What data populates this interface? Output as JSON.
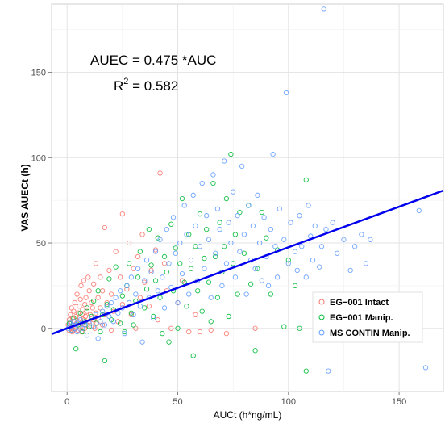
{
  "chart_data": {
    "type": "scatter",
    "title": "",
    "xlabel": "AUCt  (h*ng/mL)",
    "ylabel": "VAS AUECt (h)",
    "xlim": [
      -7,
      170
    ],
    "ylim": [
      -37,
      190
    ],
    "x_ticks": [
      0,
      50,
      100,
      150
    ],
    "y_ticks": [
      0,
      50,
      100,
      150
    ],
    "x_tick_labels": [
      "0",
      "50",
      "100",
      "150"
    ],
    "y_tick_labels": [
      "0",
      "50",
      "100",
      "150"
    ],
    "grid": true,
    "legend_position": "bottom-right",
    "annotation_line1": "AUEC = 0.475 *AUC",
    "annotation_r2_base": "R",
    "annotation_r2_sup": "2",
    "annotation_r2_value": " = 0.582",
    "fit_line": {
      "slope": 0.475,
      "intercept": 0,
      "color": "#0000ee"
    },
    "series": [
      {
        "name": "EG−001 Intact",
        "color": "#f8766d",
        "points": [
          [
            0.5,
            2
          ],
          [
            0.8,
            -1
          ],
          [
            1,
            5
          ],
          [
            1.2,
            1
          ],
          [
            1.5,
            8
          ],
          [
            1.7,
            3
          ],
          [
            2,
            0
          ],
          [
            2,
            12
          ],
          [
            2.3,
            -2
          ],
          [
            2.5,
            6
          ],
          [
            2.8,
            2
          ],
          [
            3,
            10
          ],
          [
            3,
            -1
          ],
          [
            3.2,
            4
          ],
          [
            3.5,
            15
          ],
          [
            3.7,
            1
          ],
          [
            4,
            7
          ],
          [
            4,
            0
          ],
          [
            4.3,
            3
          ],
          [
            4.5,
            20
          ],
          [
            4.8,
            -1
          ],
          [
            5,
            9
          ],
          [
            5,
            4
          ],
          [
            5.3,
            1
          ],
          [
            5.5,
            13
          ],
          [
            5.8,
            6
          ],
          [
            6,
            2
          ],
          [
            6,
            17
          ],
          [
            6.3,
            25
          ],
          [
            6.5,
            -2
          ],
          [
            6.8,
            8
          ],
          [
            7,
            3
          ],
          [
            7,
            11
          ],
          [
            7.3,
            1
          ],
          [
            7.5,
            28
          ],
          [
            7.8,
            5
          ],
          [
            8,
            14
          ],
          [
            8,
            0
          ],
          [
            8.3,
            7
          ],
          [
            8.5,
            18
          ],
          [
            9,
            2
          ],
          [
            9,
            10
          ],
          [
            9.5,
            30
          ],
          [
            10,
            4
          ],
          [
            10,
            22
          ],
          [
            10.5,
            8
          ],
          [
            11,
            1
          ],
          [
            11,
            15
          ],
          [
            11.5,
            12
          ],
          [
            12,
            5
          ],
          [
            12,
            26
          ],
          [
            12.5,
            0
          ],
          [
            13,
            9
          ],
          [
            13,
            38
          ],
          [
            13.5,
            3
          ],
          [
            14,
            18
          ],
          [
            14,
            6
          ],
          [
            15,
            12
          ],
          [
            15,
            30
          ],
          [
            16,
            2
          ],
          [
            16,
            22
          ],
          [
            17,
            59
          ],
          [
            17,
            8
          ],
          [
            18,
            15
          ],
          [
            19,
            34
          ],
          [
            20,
            -1
          ],
          [
            20,
            20
          ],
          [
            21,
            10
          ],
          [
            22,
            45
          ],
          [
            23,
            4
          ],
          [
            24,
            30
          ],
          [
            25,
            67
          ],
          [
            25,
            14
          ],
          [
            27,
            23
          ],
          [
            28,
            50
          ],
          [
            29,
            8
          ],
          [
            30,
            35
          ],
          [
            31,
            0
          ],
          [
            32,
            42
          ],
          [
            33,
            18
          ],
          [
            34,
            55
          ],
          [
            35,
            27
          ],
          [
            37,
            13
          ],
          [
            38,
            34
          ],
          [
            40,
            46
          ],
          [
            41,
            5
          ],
          [
            42,
            91
          ],
          [
            44,
            38
          ],
          [
            45,
            22
          ],
          [
            47,
            0
          ],
          [
            50,
            15
          ],
          [
            52,
            28
          ],
          [
            55,
            -2
          ],
          [
            58,
            8
          ],
          [
            60,
            -2
          ],
          [
            65,
            -1
          ],
          [
            72,
            -3
          ],
          [
            85,
            0
          ]
        ]
      },
      {
        "name": "EG−001 Manip.",
        "color": "#00ba38",
        "points": [
          [
            1,
            3
          ],
          [
            2,
            -1
          ],
          [
            3,
            6
          ],
          [
            4,
            -12
          ],
          [
            5,
            2
          ],
          [
            6,
            9
          ],
          [
            7,
            -2
          ],
          [
            8,
            4
          ],
          [
            9,
            12
          ],
          [
            10,
            1
          ],
          [
            11,
            7
          ],
          [
            12,
            16
          ],
          [
            13,
            3
          ],
          [
            14,
            22
          ],
          [
            15,
            -2
          ],
          [
            16,
            8
          ],
          [
            17,
            -19
          ],
          [
            18,
            14
          ],
          [
            19,
            29
          ],
          [
            20,
            5
          ],
          [
            21,
            11
          ],
          [
            22,
            36
          ],
          [
            24,
            3
          ],
          [
            25,
            19
          ],
          [
            26,
            -2
          ],
          [
            27,
            25
          ],
          [
            28,
            38
          ],
          [
            29,
            9
          ],
          [
            30,
            2
          ],
          [
            31,
            16
          ],
          [
            32,
            30
          ],
          [
            33,
            45
          ],
          [
            35,
            12
          ],
          [
            36,
            23
          ],
          [
            37,
            58
          ],
          [
            38,
            37
          ],
          [
            39,
            7
          ],
          [
            40,
            28
          ],
          [
            41,
            53
          ],
          [
            42,
            18
          ],
          [
            43,
            -3
          ],
          [
            44,
            42
          ],
          [
            45,
            33
          ],
          [
            46,
            -8
          ],
          [
            47,
            61
          ],
          [
            48,
            22
          ],
          [
            49,
            47
          ],
          [
            50,
            0
          ],
          [
            51,
            38
          ],
          [
            52,
            76
          ],
          [
            53,
            27
          ],
          [
            54,
            13
          ],
          [
            55,
            55
          ],
          [
            56,
            35
          ],
          [
            57,
            -16
          ],
          [
            58,
            48
          ],
          [
            59,
            22
          ],
          [
            60,
            67
          ],
          [
            61,
            10
          ],
          [
            62,
            41
          ],
          [
            63,
            58
          ],
          [
            64,
            27
          ],
          [
            65,
            4
          ],
          [
            66,
            85
          ],
          [
            67,
            42
          ],
          [
            68,
            18
          ],
          [
            69,
            62
          ],
          [
            70,
            33
          ],
          [
            71,
            48
          ],
          [
            72,
            76
          ],
          [
            73,
            7
          ],
          [
            74,
            102
          ],
          [
            75,
            38
          ],
          [
            76,
            55
          ],
          [
            77,
            20
          ],
          [
            78,
            68
          ],
          [
            80,
            44
          ],
          [
            82,
            72
          ],
          [
            83,
            26
          ],
          [
            85,
            -13
          ],
          [
            86,
            35
          ],
          [
            88,
            68
          ],
          [
            90,
            53
          ],
          [
            92,
            20
          ],
          [
            95,
            46
          ],
          [
            98,
            1
          ],
          [
            100,
            40
          ],
          [
            103,
            25
          ],
          [
            105,
            0
          ],
          [
            108,
            87
          ],
          [
            108,
            -25
          ]
        ]
      },
      {
        "name": "MS CONTIN Manip.",
        "color": "#619cff",
        "points": [
          [
            0.5,
            0
          ],
          [
            1,
            1
          ],
          [
            1.5,
            3
          ],
          [
            2,
            -1
          ],
          [
            2.5,
            2
          ],
          [
            3,
            4
          ],
          [
            3.5,
            0
          ],
          [
            4,
            2
          ],
          [
            4.5,
            -2
          ],
          [
            5,
            3
          ],
          [
            5.5,
            1
          ],
          [
            6,
            5
          ],
          [
            7,
            0
          ],
          [
            8,
            2
          ],
          [
            9,
            -4
          ],
          [
            10,
            3
          ],
          [
            11,
            6
          ],
          [
            12,
            1
          ],
          [
            13,
            8
          ],
          [
            14,
            -6
          ],
          [
            15,
            4
          ],
          [
            16,
            10
          ],
          [
            17,
            2
          ],
          [
            18,
            13
          ],
          [
            19,
            7
          ],
          [
            20,
            15
          ],
          [
            21,
            4
          ],
          [
            22,
            18
          ],
          [
            23,
            9
          ],
          [
            24,
            22
          ],
          [
            25,
            12
          ],
          [
            26,
            -3
          ],
          [
            27,
            25
          ],
          [
            28,
            15
          ],
          [
            29,
            30
          ],
          [
            30,
            8
          ],
          [
            31,
            20
          ],
          [
            32,
            35
          ],
          [
            33,
            13
          ],
          [
            34,
            -8
          ],
          [
            35,
            28
          ],
          [
            36,
            40
          ],
          [
            37,
            18
          ],
          [
            38,
            33
          ],
          [
            39,
            6
          ],
          [
            40,
            45
          ],
          [
            41,
            22
          ],
          [
            42,
            52
          ],
          [
            43,
            30
          ],
          [
            44,
            12
          ],
          [
            45,
            58
          ],
          [
            46,
            38
          ],
          [
            47,
            24
          ],
          [
            48,
            65
          ],
          [
            49,
            44
          ],
          [
            50,
            15
          ],
          [
            51,
            50
          ],
          [
            52,
            32
          ],
          [
            53,
            72
          ],
          [
            54,
            55
          ],
          [
            55,
            20
          ],
          [
            56,
            40
          ],
          [
            57,
            78
          ],
          [
            58,
            60
          ],
          [
            59,
            28
          ],
          [
            60,
            48
          ],
          [
            61,
            85
          ],
          [
            62,
            35
          ],
          [
            63,
            66
          ],
          [
            64,
            52
          ],
          [
            65,
            18
          ],
          [
            66,
            90
          ],
          [
            67,
            44
          ],
          [
            68,
            70
          ],
          [
            69,
            58
          ],
          [
            70,
            25
          ],
          [
            71,
            98
          ],
          [
            72,
            38
          ],
          [
            73,
            62
          ],
          [
            74,
            50
          ],
          [
            75,
            80
          ],
          [
            76,
            30
          ],
          [
            77,
            66
          ],
          [
            78,
            45
          ],
          [
            79,
            95
          ],
          [
            80,
            55
          ],
          [
            81,
            20
          ],
          [
            82,
            72
          ],
          [
            83,
            40
          ],
          [
            84,
            60
          ],
          [
            85,
            35
          ],
          [
            86,
            78
          ],
          [
            87,
            50
          ],
          [
            88,
            28
          ],
          [
            89,
            65
          ],
          [
            90,
            42
          ],
          [
            91,
            25
          ],
          [
            92,
            58
          ],
          [
            93,
            102
          ],
          [
            94,
            48
          ],
          [
            95,
            30
          ],
          [
            96,
            70
          ],
          [
            98,
            52
          ],
          [
            99,
            138
          ],
          [
            100,
            38
          ],
          [
            101,
            62
          ],
          [
            103,
            45
          ],
          [
            104,
            34
          ],
          [
            105,
            66
          ],
          [
            106,
            48
          ],
          [
            108,
            30
          ],
          [
            109,
            72
          ],
          [
            110,
            54
          ],
          [
            111,
            40
          ],
          [
            112,
            60
          ],
          [
            114,
            36
          ],
          [
            115,
            48
          ],
          [
            116,
            187
          ],
          [
            117,
            58
          ],
          [
            118,
            -25
          ],
          [
            120,
            62
          ],
          [
            122,
            44
          ],
          [
            125,
            52
          ],
          [
            128,
            34
          ],
          [
            130,
            48
          ],
          [
            133,
            55
          ],
          [
            135,
            38
          ],
          [
            137,
            52
          ],
          [
            159,
            69
          ],
          [
            162,
            -23
          ]
        ]
      }
    ]
  }
}
